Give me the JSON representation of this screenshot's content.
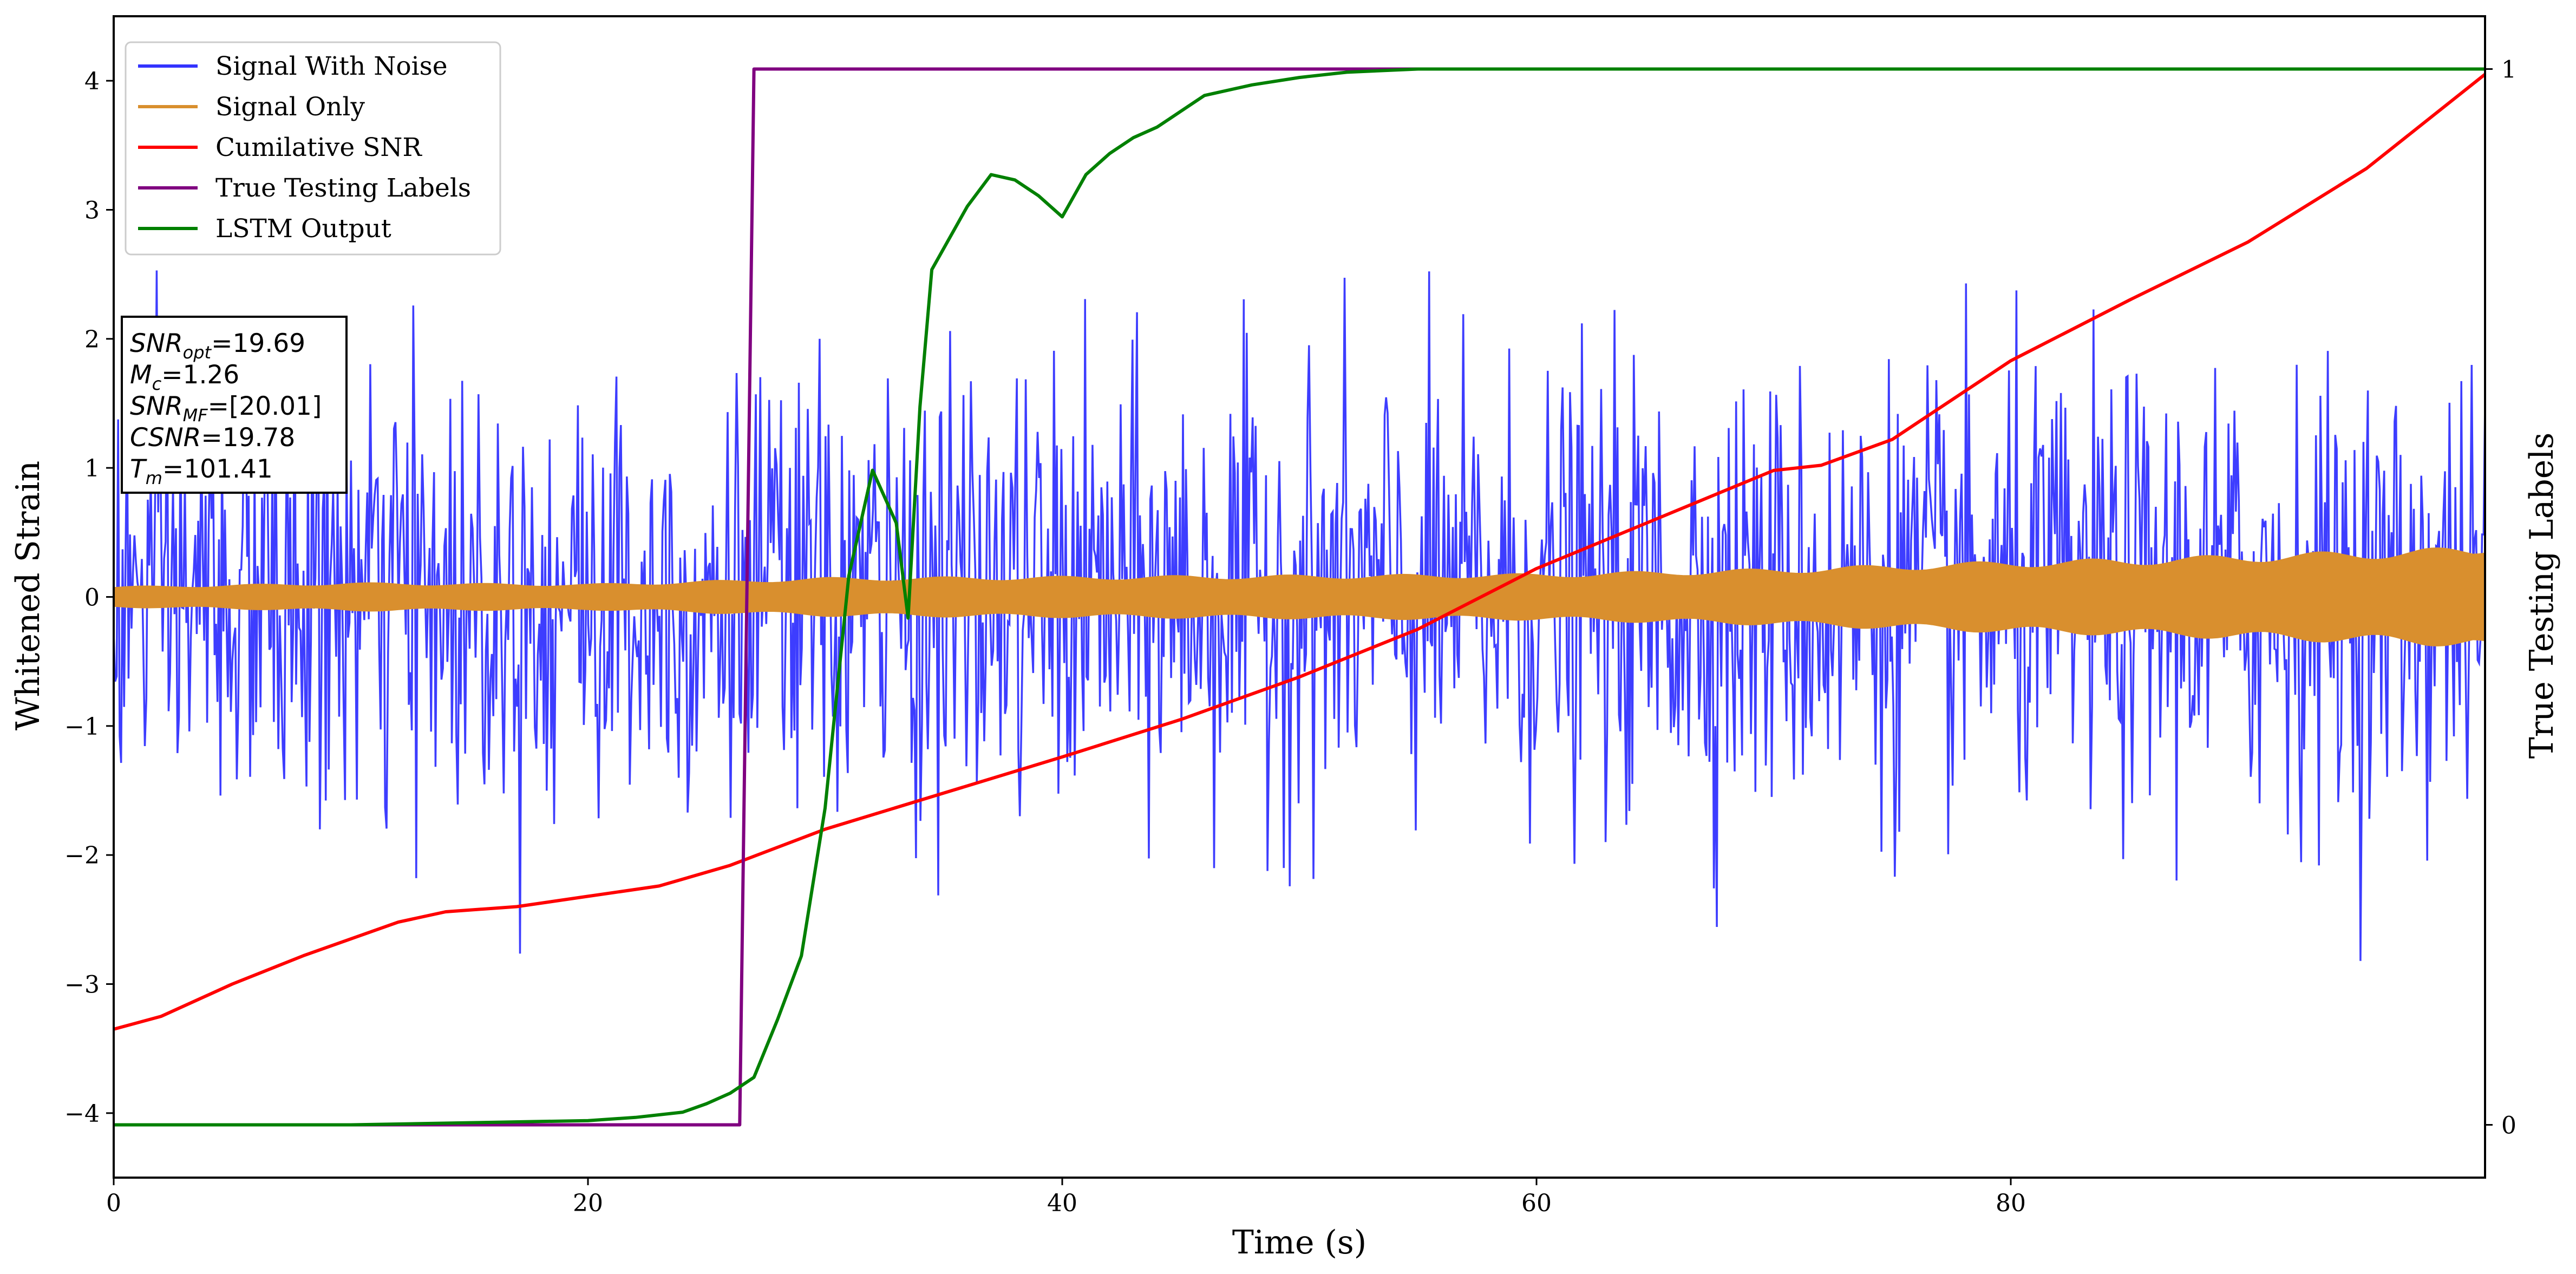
{
  "chart_data": {
    "type": "line",
    "xlabel": "Time (s)",
    "ylabel": "Whitened Strain",
    "y2label": "True Testing Labels",
    "xlim": [
      0,
      100
    ],
    "ylim": [
      -4.5,
      4.5
    ],
    "y2lim": [
      -0.05,
      1.05
    ],
    "xticks": [
      0,
      20,
      40,
      60,
      80
    ],
    "yticks": [
      -4,
      -3,
      -2,
      -1,
      0,
      1,
      2,
      3,
      4
    ],
    "y2ticks": [
      0,
      1
    ],
    "grid": false,
    "legend_position": "top-left",
    "annotation": [
      {
        "main": "SNR",
        "sub": "opt",
        "value": "=19.69"
      },
      {
        "main": "M",
        "sub": "c",
        "value": "=1.26"
      },
      {
        "main": "SNR",
        "sub": "MF",
        "value": "=[20.01]"
      },
      {
        "main": "CSNR",
        "sub": "",
        "value": "=19.78"
      },
      {
        "main": "T",
        "sub": "m",
        "value": "=101.41"
      }
    ],
    "series": [
      {
        "name": "Signal With Noise",
        "color": "#3333ff",
        "axis": "left",
        "noise": {
          "sigma": 0.85,
          "points": 1600,
          "ymin": -3.9,
          "ymax": 3.1
        }
      },
      {
        "name": "Signal Only",
        "color": "#d98f2e",
        "axis": "left",
        "envelope": {
          "x": [
            0,
            10,
            20,
            26,
            30,
            40,
            50,
            60,
            65,
            70,
            75,
            80,
            85,
            90,
            95,
            99.5,
            100
          ],
          "amplitude": [
            0.08,
            0.11,
            0.1,
            0.13,
            0.15,
            0.16,
            0.17,
            0.18,
            0.2,
            0.22,
            0.25,
            0.28,
            0.3,
            0.33,
            0.36,
            0.39,
            0.42
          ]
        }
      },
      {
        "name": "Cumilative SNR",
        "color": "#ff0000",
        "axis": "left",
        "x": [
          0,
          2,
          5,
          8,
          10,
          12,
          14,
          17,
          20,
          23,
          26,
          30,
          35,
          40,
          45,
          50,
          55,
          60,
          65,
          70,
          72,
          75,
          80,
          85,
          90,
          95,
          100
        ],
        "y": [
          -3.35,
          -3.25,
          -3.0,
          -2.78,
          -2.65,
          -2.52,
          -2.44,
          -2.4,
          -2.32,
          -2.24,
          -2.08,
          -1.8,
          -1.52,
          -1.24,
          -0.95,
          -0.62,
          -0.25,
          0.22,
          0.6,
          0.98,
          1.02,
          1.22,
          1.83,
          2.3,
          2.75,
          3.32,
          4.05
        ]
      },
      {
        "name": "True Testing Labels",
        "color": "#800080",
        "axis": "right",
        "x": [
          0,
          26.4,
          27.0,
          100
        ],
        "y": [
          0,
          0,
          1,
          1
        ]
      },
      {
        "name": "LSTM Output",
        "color": "#008000",
        "axis": "right",
        "x": [
          0,
          10,
          15,
          20,
          22,
          24,
          25,
          26,
          27,
          28,
          29,
          30,
          31,
          32,
          33,
          33.5,
          34,
          34.5,
          35,
          36,
          37,
          38,
          39,
          40,
          41,
          42,
          43,
          44,
          45,
          46,
          48,
          50,
          52,
          55,
          60,
          100
        ],
        "y": [
          0,
          0,
          0.002,
          0.004,
          0.007,
          0.012,
          0.02,
          0.03,
          0.045,
          0.1,
          0.16,
          0.3,
          0.52,
          0.62,
          0.57,
          0.48,
          0.68,
          0.81,
          0.83,
          0.87,
          0.9,
          0.895,
          0.88,
          0.86,
          0.9,
          0.92,
          0.935,
          0.945,
          0.96,
          0.975,
          0.985,
          0.992,
          0.997,
          1,
          1,
          1
        ]
      }
    ]
  }
}
